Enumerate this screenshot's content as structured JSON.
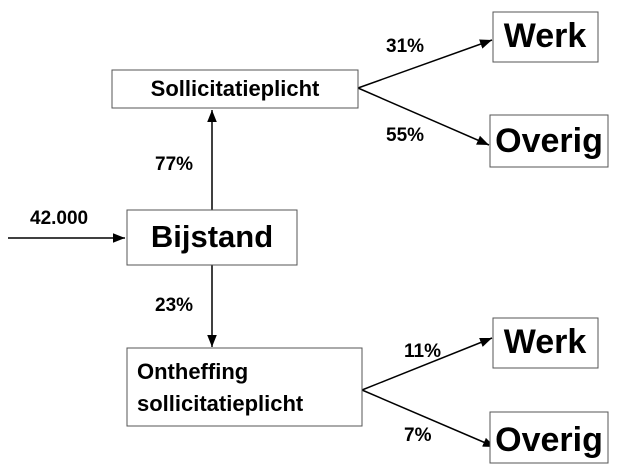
{
  "input": {
    "label": "42.000"
  },
  "nodes": [
    {
      "label": "Bijstand"
    },
    {
      "label": "Sollicitatieplicht"
    },
    {
      "lines": [
        "Ontheffing",
        "sollicitatieplicht"
      ]
    },
    {
      "label": "Werk"
    },
    {
      "label": "Overig"
    },
    {
      "label": "Werk"
    },
    {
      "label": "Overig"
    }
  ],
  "edges": [
    {
      "label": "77%"
    },
    {
      "label": "23%"
    },
    {
      "label": "31%"
    },
    {
      "label": "55%"
    },
    {
      "label": "11%"
    },
    {
      "label": "7%"
    }
  ]
}
